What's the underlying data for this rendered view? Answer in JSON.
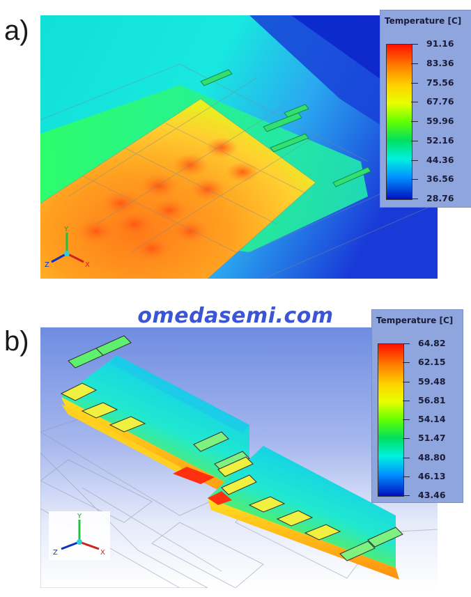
{
  "panel_a": {
    "label": "a)",
    "legend": {
      "title": "Temperature [C]",
      "ticks": [
        "91.16",
        "83.36",
        "75.56",
        "67.76",
        "59.96",
        "52.16",
        "44.36",
        "36.56",
        "28.76"
      ]
    },
    "triad": {
      "y": "Y",
      "z": "Z",
      "x": "X"
    }
  },
  "panel_b": {
    "label": "b)",
    "legend": {
      "title": "Temperature [C]",
      "ticks": [
        "64.82",
        "62.15",
        "59.48",
        "56.81",
        "54.14",
        "51.47",
        "48.80",
        "46.13",
        "43.46"
      ]
    },
    "triad": {
      "y": "Y",
      "z": "Z",
      "x": "X"
    }
  },
  "watermark": "omedasemi.com",
  "colors": {
    "hot": "#ff2a00",
    "cold": "#0020d0",
    "background_blue": "#6f8de0"
  }
}
